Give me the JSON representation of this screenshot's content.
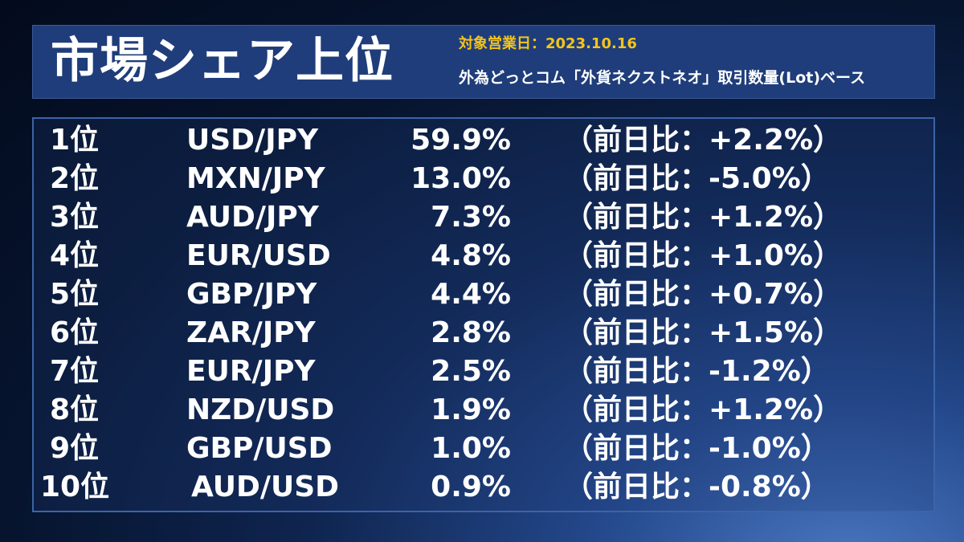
{
  "header": {
    "title": "市場シェア上位",
    "date_line": "対象営業日：2023.10.16",
    "basis_line": "外為どっとコム「外貨ネクストネオ」取引数量(Lot)ベース"
  },
  "rows": [
    {
      "rank": "1位",
      "pair": "USD/JPY",
      "share": "59.9%",
      "change": "（前日比：+2.2%）"
    },
    {
      "rank": "2位",
      "pair": "MXN/JPY",
      "share": "13.0%",
      "change": "（前日比：-5.0%）"
    },
    {
      "rank": "3位",
      "pair": "AUD/JPY",
      "share": "7.3%",
      "change": "（前日比：+1.2%）"
    },
    {
      "rank": "4位",
      "pair": "EUR/USD",
      "share": "4.8%",
      "change": "（前日比：+1.0%）"
    },
    {
      "rank": "5位",
      "pair": "GBP/JPY",
      "share": "4.4%",
      "change": "（前日比：+0.7%）"
    },
    {
      "rank": "6位",
      "pair": "ZAR/JPY",
      "share": "2.8%",
      "change": "（前日比：+1.5%）"
    },
    {
      "rank": "7位",
      "pair": "EUR/JPY",
      "share": "2.5%",
      "change": "（前日比：-1.2%）"
    },
    {
      "rank": "8位",
      "pair": "NZD/USD",
      "share": "1.9%",
      "change": "（前日比：+1.2%）"
    },
    {
      "rank": "9位",
      "pair": "GBP/USD",
      "share": "1.0%",
      "change": "（前日比：-1.0%）"
    },
    {
      "rank": "10位",
      "pair": "AUD/USD",
      "share": "0.9%",
      "change": "（前日比：-0.8%）"
    }
  ]
}
